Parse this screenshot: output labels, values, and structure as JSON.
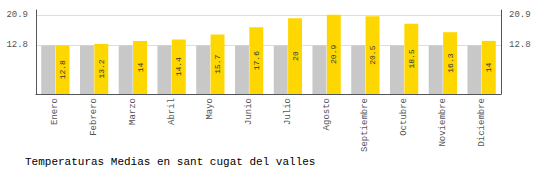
{
  "chart_data": {
    "type": "bar",
    "title": "Temperaturas Medias en sant cugat del valles",
    "categories": [
      "Enero",
      "Febrero",
      "Marzo",
      "Abril",
      "Mayo",
      "Junio",
      "Julio",
      "Agosto",
      "Septiembre",
      "Octubre",
      "Noviembre",
      "Diciembre"
    ],
    "series": [
      {
        "color": "#C8C8C8",
        "values": [
          12.8,
          12.8,
          12.8,
          12.8,
          12.8,
          12.8,
          12.8,
          12.8,
          12.8,
          12.8,
          12.8,
          12.8
        ]
      },
      {
        "color": "#FFD700",
        "data_labels": true,
        "values": [
          12.8,
          13.2,
          14.0,
          14.4,
          15.7,
          17.6,
          20.0,
          20.9,
          20.5,
          18.5,
          16.3,
          14.0
        ]
      }
    ],
    "ylim": [
      0,
      22.154
    ],
    "yticks": [
      12.8,
      20.9
    ],
    "y2lim": [
      0,
      22.154
    ],
    "y2ticks": [
      12.8,
      20.9
    ],
    "grid": true
  }
}
